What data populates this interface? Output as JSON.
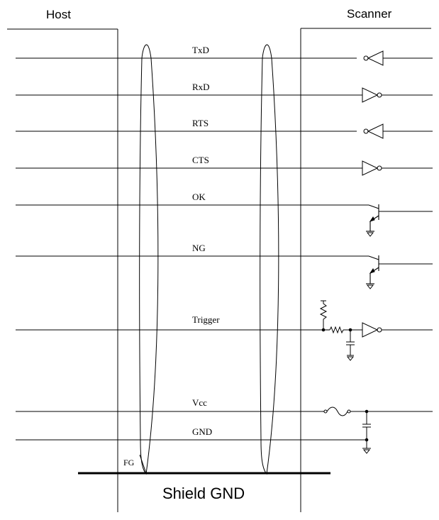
{
  "headers": {
    "host": "Host",
    "scanner": "Scanner"
  },
  "signals": [
    "TxD",
    "RxD",
    "RTS",
    "CTS",
    "OK",
    "NG",
    "Trigger",
    "Vcc",
    "GND"
  ],
  "fg_label": "FG",
  "shield_label": "Shield GND"
}
